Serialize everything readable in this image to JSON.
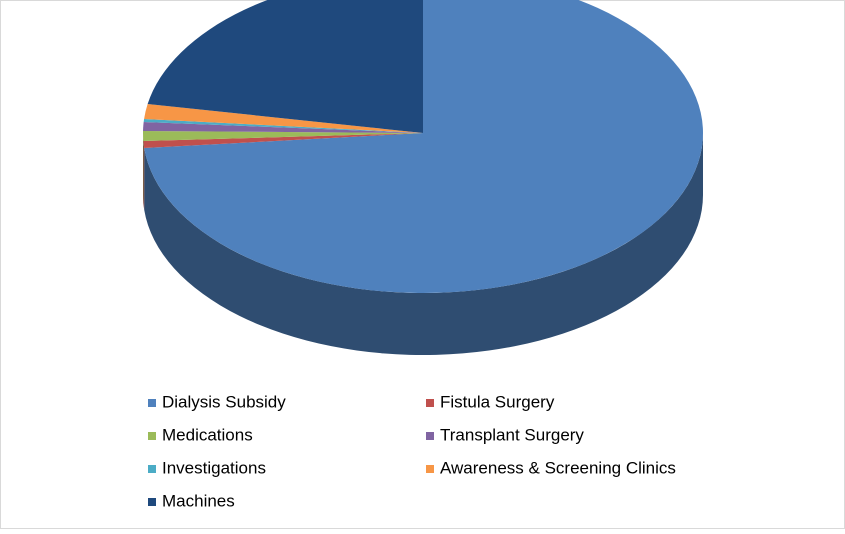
{
  "chart_data": {
    "type": "pie",
    "categories": [
      "Dialysis Subsidy",
      "Fistula Surgery",
      "Medications",
      "Transplant Surgery",
      "Investigations",
      "Awareness & Screening Clinics",
      "Machines"
    ],
    "values": [
      73.5,
      0.7,
      1.0,
      0.9,
      0.3,
      1.5,
      22.1
    ],
    "colors": [
      "#4f81bd",
      "#c0504d",
      "#9bbb59",
      "#8064a2",
      "#4bacc6",
      "#f79646",
      "#1f497d"
    ],
    "legend": "bottom"
  }
}
